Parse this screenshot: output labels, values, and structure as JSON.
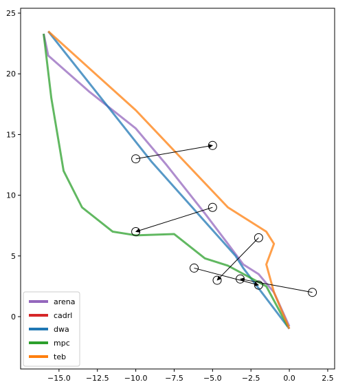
{
  "chart_data": {
    "type": "line",
    "xlim": [
      -17.5,
      2.95
    ],
    "ylim": [
      -4.31,
      25.4
    ],
    "xticks": [
      {
        "value": -15,
        "label": "−15.0"
      },
      {
        "value": -12.5,
        "label": "−12.5"
      },
      {
        "value": -10,
        "label": "−10.0"
      },
      {
        "value": -7.5,
        "label": "−7.5"
      },
      {
        "value": -5,
        "label": "−5.0"
      },
      {
        "value": -2.5,
        "label": "−2.5"
      },
      {
        "value": 0,
        "label": "0.0"
      },
      {
        "value": 2.5,
        "label": "2.5"
      }
    ],
    "yticks": [
      0,
      5,
      10,
      15,
      20,
      25
    ],
    "legend": "lower left",
    "series": [
      {
        "name": "arena",
        "color": "#9467bd",
        "x": [
          -16,
          -15.7,
          -13,
          -10,
          -8,
          -5.5,
          -4,
          -3,
          -2,
          -1,
          0
        ],
        "values": [
          23.3,
          21.5,
          18.5,
          15.5,
          12.5,
          8.5,
          6,
          4.3,
          3.5,
          2,
          -0.8
        ]
      },
      {
        "name": "cadrl",
        "color": "#d62728",
        "x": [],
        "values": []
      },
      {
        "name": "dwa",
        "color": "#1f77b4",
        "x": [
          -15.7,
          -9,
          -3.5,
          -3,
          0
        ],
        "values": [
          23.5,
          12.8,
          5,
          4,
          -1
        ]
      },
      {
        "name": "mpc",
        "color": "#2ca02c",
        "x": [
          -16,
          -15.5,
          -14.7,
          -13.5,
          -11.5,
          -10,
          -7.5,
          -5.5,
          -4,
          -1.5,
          -0.1
        ],
        "values": [
          23.3,
          18,
          12,
          9,
          7,
          6.7,
          6.8,
          4.8,
          4.2,
          2.5,
          -0.8
        ]
      },
      {
        "name": "teb",
        "color": "#ff7f0e",
        "x": [
          -15.7,
          -10,
          -4,
          -1.5,
          -1,
          -1.5,
          -1,
          0
        ],
        "values": [
          23.5,
          17,
          9,
          7,
          6,
          4.3,
          2,
          -1
        ]
      }
    ],
    "obstacles": [
      {
        "x0": -10,
        "y0": 13,
        "x1": -5,
        "y1": 14.1
      },
      {
        "x0": -5,
        "y0": 9,
        "x1": -10,
        "y1": 7
      },
      {
        "x0": -2,
        "y0": 6.5,
        "x1": -4.7,
        "y1": 3
      },
      {
        "x0": -6.2,
        "y0": 4,
        "x1": -2,
        "y1": 2.6
      },
      {
        "x0": 1.5,
        "y0": 2,
        "x1": -3.2,
        "y1": 3.1
      }
    ]
  }
}
